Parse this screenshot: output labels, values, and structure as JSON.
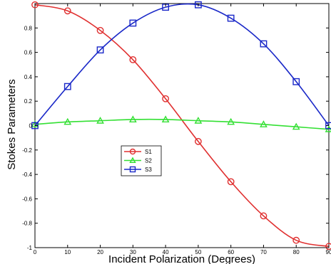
{
  "chart_data": {
    "type": "line",
    "title": "",
    "xlabel": "Incident Polarization (Degrees)",
    "ylabel": "Stokes Parameters",
    "xlim": [
      0,
      90
    ],
    "ylim": [
      -1,
      1
    ],
    "grid": false,
    "legend_position": "center-left",
    "x": [
      0,
      10,
      20,
      30,
      40,
      50,
      60,
      70,
      80,
      90
    ],
    "x_ticks": [
      "0",
      "10",
      "20",
      "30",
      "40",
      "50",
      "60",
      "70",
      "80",
      "90"
    ],
    "y_ticks": [
      "-1",
      "-0.8",
      "-0.6",
      "-0.4",
      "-0.2",
      "0",
      "0.2",
      "0.4",
      "0.6",
      "0.8"
    ],
    "y_tick_values": [
      -1,
      -0.8,
      -0.6,
      -0.4,
      -0.2,
      0,
      0.2,
      0.4,
      0.6,
      0.8
    ],
    "series": [
      {
        "name": "S1",
        "color": "#e03030",
        "marker": "circle",
        "values": [
          0.99,
          0.94,
          0.78,
          0.54,
          0.22,
          -0.13,
          -0.46,
          -0.74,
          -0.94,
          -0.99
        ]
      },
      {
        "name": "S2",
        "color": "#33e033",
        "marker": "triangle",
        "values": [
          0.01,
          0.03,
          0.04,
          0.05,
          0.05,
          0.04,
          0.03,
          0.01,
          -0.01,
          -0.03
        ]
      },
      {
        "name": "S3",
        "color": "#1a28c8",
        "marker": "square",
        "values": [
          0.0,
          0.32,
          0.62,
          0.84,
          0.97,
          0.99,
          0.88,
          0.67,
          0.36,
          0.0
        ]
      }
    ]
  }
}
